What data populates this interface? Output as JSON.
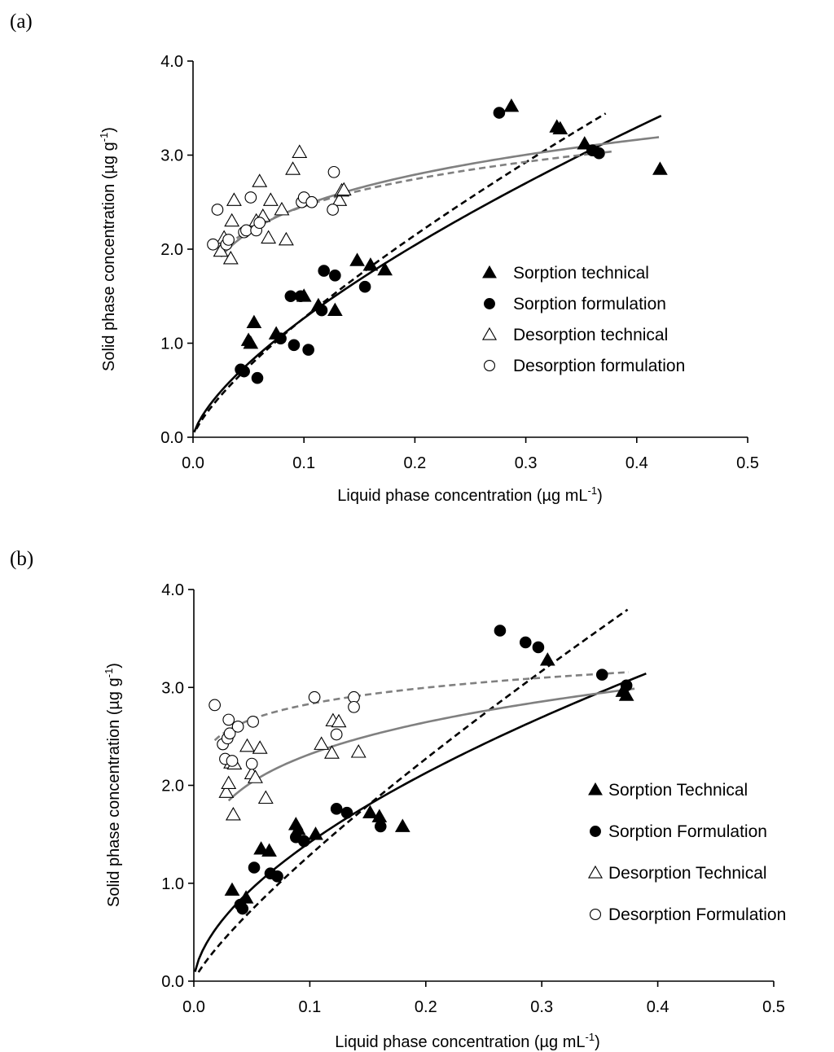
{
  "panels": [
    {
      "label": "(a)",
      "chart_data": {
        "type": "scatter",
        "xlabel": "Liquid phase concentration",
        "xlabel_unit_pre": "(µg mL",
        "xlabel_unit_sup": "-1",
        "xlabel_unit_post": ")",
        "ylabel": "Solid phase concentration",
        "ylabel_unit_pre": "(µg g",
        "ylabel_unit_sup": "-1",
        "ylabel_unit_post": ")",
        "xlim": [
          0,
          0.5
        ],
        "ylim": [
          0,
          4
        ],
        "xticks": [
          "0.0",
          "0.1",
          "0.2",
          "0.3",
          "0.4",
          "0.5"
        ],
        "yticks": [
          "0.0",
          "1.0",
          "2.0",
          "3.0",
          "4.0"
        ],
        "legend_position": "right-middle",
        "series": [
          {
            "name": "Sorption technical",
            "marker": "triangle",
            "fill": "#000000",
            "x": [
              0.05,
              0.052,
              0.055,
              0.075,
              0.1,
              0.113,
              0.128,
              0.148,
              0.16,
              0.173,
              0.287,
              0.328,
              0.331,
              0.353,
              0.421
            ],
            "y": [
              1.03,
              1.0,
              1.22,
              1.1,
              1.5,
              1.4,
              1.35,
              1.88,
              1.83,
              1.78,
              3.52,
              3.3,
              3.28,
              3.12,
              2.85
            ]
          },
          {
            "name": "Sorption formulation",
            "marker": "circle",
            "fill": "#000000",
            "x": [
              0.043,
              0.046,
              0.058,
              0.079,
              0.088,
              0.091,
              0.097,
              0.104,
              0.116,
              0.118,
              0.128,
              0.155,
              0.276,
              0.36,
              0.366
            ],
            "y": [
              0.72,
              0.7,
              0.63,
              1.05,
              1.5,
              0.98,
              1.5,
              0.93,
              1.35,
              1.77,
              1.72,
              1.6,
              3.45,
              3.05,
              3.02
            ]
          },
          {
            "name": "Desorption technical",
            "marker": "triangle",
            "fill": "none",
            "x": [
              0.025,
              0.028,
              0.034,
              0.035,
              0.037,
              0.057,
              0.06,
              0.063,
              0.068,
              0.07,
              0.08,
              0.084,
              0.09,
              0.096,
              0.132,
              0.134,
              0.136
            ],
            "y": [
              1.98,
              2.12,
              1.9,
              2.3,
              2.52,
              2.3,
              2.72,
              2.35,
              2.12,
              2.52,
              2.42,
              2.1,
              2.85,
              3.03,
              2.52,
              2.62,
              2.63
            ]
          },
          {
            "name": "Desorption formulation",
            "marker": "circle",
            "fill": "none",
            "x": [
              0.018,
              0.022,
              0.03,
              0.032,
              0.046,
              0.048,
              0.052,
              0.057,
              0.06,
              0.098,
              0.1,
              0.107,
              0.126,
              0.127
            ],
            "y": [
              2.05,
              2.42,
              2.05,
              2.1,
              2.18,
              2.2,
              2.55,
              2.2,
              2.28,
              2.5,
              2.55,
              2.5,
              2.42,
              2.82
            ]
          }
        ],
        "fits": [
          {
            "color": "#000000",
            "dash": false,
            "k": 6.2,
            "n": 0.69,
            "x0": 0.001,
            "x1": 0.422
          },
          {
            "color": "#000000",
            "dash": true,
            "k": 7.3,
            "n": 0.76,
            "x0": 0.003,
            "x1": 0.372
          },
          {
            "color": "#808080",
            "dash": false,
            "k": 3.73,
            "n": 0.18,
            "x0": 0.025,
            "x1": 0.42
          },
          {
            "color": "#808080",
            "dash": true,
            "k": 3.55,
            "n": 0.16,
            "x0": 0.025,
            "x1": 0.38
          }
        ]
      }
    },
    {
      "label": "(b)",
      "chart_data": {
        "type": "scatter",
        "xlabel": "Liquid phase concentration",
        "xlabel_unit_pre": "(µg mL",
        "xlabel_unit_sup": "-1",
        "xlabel_unit_post": ")",
        "ylabel": "Solid phase concentration",
        "ylabel_unit_pre": "(µg g",
        "ylabel_unit_sup": "-1",
        "ylabel_unit_post": ")",
        "xlim": [
          0,
          0.5
        ],
        "ylim": [
          0,
          4
        ],
        "xticks": [
          "0.0",
          "0.1",
          "0.2",
          "0.3",
          "0.4",
          "0.5"
        ],
        "yticks": [
          "0.0",
          "1.0",
          "2.0",
          "3.0",
          "4.0"
        ],
        "legend_position": "right-middle",
        "series": [
          {
            "name": "Sorption Technical",
            "marker": "triangle",
            "fill": "#000000",
            "x": [
              0.033,
              0.045,
              0.058,
              0.065,
              0.088,
              0.09,
              0.105,
              0.152,
              0.16,
              0.18,
              0.305,
              0.37,
              0.373
            ],
            "y": [
              0.93,
              0.85,
              1.35,
              1.33,
              1.6,
              1.55,
              1.5,
              1.72,
              1.68,
              1.58,
              3.28,
              2.96,
              2.92
            ]
          },
          {
            "name": "Sorption Formulation",
            "marker": "circle",
            "fill": "#000000",
            "x": [
              0.04,
              0.042,
              0.052,
              0.066,
              0.072,
              0.088,
              0.095,
              0.123,
              0.132,
              0.161,
              0.264,
              0.286,
              0.297,
              0.352,
              0.373
            ],
            "y": [
              0.78,
              0.74,
              1.16,
              1.1,
              1.07,
              1.47,
              1.43,
              1.76,
              1.72,
              1.58,
              3.58,
              3.46,
              3.41,
              3.13,
              3.02
            ]
          },
          {
            "name": "Desorption Technical",
            "marker": "triangle",
            "fill": "none",
            "x": [
              0.028,
              0.03,
              0.032,
              0.034,
              0.035,
              0.046,
              0.05,
              0.053,
              0.057,
              0.062,
              0.11,
              0.119,
              0.12,
              0.125,
              0.142
            ],
            "y": [
              1.93,
              2.02,
              2.23,
              1.7,
              2.22,
              2.4,
              2.12,
              2.08,
              2.38,
              1.87,
              2.42,
              2.33,
              2.66,
              2.65,
              2.34
            ]
          },
          {
            "name": "Desorption Formulation",
            "marker": "circle",
            "fill": "none",
            "x": [
              0.018,
              0.025,
              0.027,
              0.029,
              0.03,
              0.031,
              0.033,
              0.038,
              0.05,
              0.051,
              0.104,
              0.123,
              0.138,
              0.138
            ],
            "y": [
              2.82,
              2.42,
              2.27,
              2.48,
              2.67,
              2.53,
              2.25,
              2.6,
              2.22,
              2.65,
              2.9,
              2.52,
              2.9,
              2.8
            ]
          }
        ],
        "fits": [
          {
            "color": "#000000",
            "dash": false,
            "k": 5.45,
            "n": 0.585,
            "x0": 0.001,
            "x1": 0.39
          },
          {
            "color": "#000000",
            "dash": true,
            "k": 8.5,
            "n": 0.82,
            "x0": 0.004,
            "x1": 0.374
          },
          {
            "color": "#808080",
            "dash": false,
            "k": 3.59,
            "n": 0.19,
            "x0": 0.03,
            "x1": 0.38
          },
          {
            "color": "#808080",
            "dash": true,
            "k": 3.42,
            "n": 0.082,
            "x0": 0.018,
            "x1": 0.375
          }
        ]
      }
    }
  ]
}
